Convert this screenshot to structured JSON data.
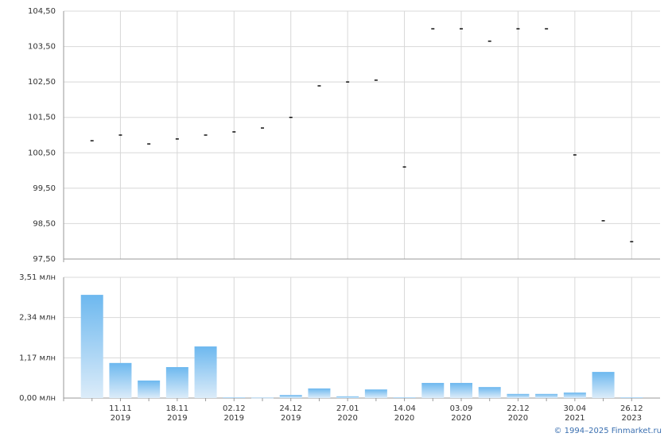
{
  "chart_data": [
    {
      "type": "tick",
      "categories": [
        null,
        [
          "11.11",
          "2019"
        ],
        null,
        [
          "18.11",
          "2019"
        ],
        null,
        [
          "02.12",
          "2019"
        ],
        null,
        [
          "24.12",
          "2019"
        ],
        null,
        [
          "27.01",
          "2020"
        ],
        null,
        [
          "14.04",
          "2020"
        ],
        null,
        [
          "03.09",
          "2020"
        ],
        null,
        [
          "22.12",
          "2020"
        ],
        null,
        [
          "30.04",
          "2021"
        ],
        null,
        [
          "26.12",
          "2023"
        ]
      ],
      "values": [
        100.84,
        101.0,
        100.75,
        100.89,
        101.0,
        101.09,
        101.2,
        101.5,
        102.39,
        102.5,
        102.55,
        100.1,
        104.0,
        104.0,
        103.65,
        104.0,
        104.0,
        100.44,
        98.58,
        97.99
      ],
      "color": "#000000",
      "ylim": [
        97.5,
        104.5
      ],
      "yticks": [
        {
          "value": 97.5,
          "label": "97,50"
        },
        {
          "value": 98.5,
          "label": "98,50"
        },
        {
          "value": 99.5,
          "label": "99,50"
        },
        {
          "value": 100.5,
          "label": "100,50"
        },
        {
          "value": 101.5,
          "label": "101,50"
        },
        {
          "value": 102.5,
          "label": "102,50"
        },
        {
          "value": 103.5,
          "label": "103,50"
        },
        {
          "value": 104.5,
          "label": "104,50"
        }
      ],
      "grid": true
    },
    {
      "type": "bar",
      "categories": [
        null,
        [
          "11.11",
          "2019"
        ],
        null,
        [
          "18.11",
          "2019"
        ],
        null,
        [
          "02.12",
          "2019"
        ],
        null,
        [
          "24.12",
          "2019"
        ],
        null,
        [
          "27.01",
          "2020"
        ],
        null,
        [
          "14.04",
          "2020"
        ],
        null,
        [
          "03.09",
          "2020"
        ],
        null,
        [
          "22.12",
          "2020"
        ],
        null,
        [
          "30.04",
          "2021"
        ],
        null,
        [
          "26.12",
          "2023"
        ]
      ],
      "values": [
        3.0,
        1.02,
        0.51,
        0.9,
        1.5,
        0.02,
        0.01,
        0.09,
        0.28,
        0.05,
        0.25,
        0.02,
        0.44,
        0.44,
        0.32,
        0.12,
        0.12,
        0.16,
        0.76,
        0.02
      ],
      "color": "#6db8ef",
      "ylim": [
        0,
        3.51
      ],
      "yticks": [
        {
          "value": 0,
          "label": "0,00 млн"
        },
        {
          "value": 1.17,
          "label": "1,17 млн"
        },
        {
          "value": 2.34,
          "label": "2,34 млн"
        },
        {
          "value": 3.51,
          "label": "3,51 млн"
        }
      ],
      "grid": true
    }
  ],
  "footer": "© 1994–2025 Finmarket.ru"
}
